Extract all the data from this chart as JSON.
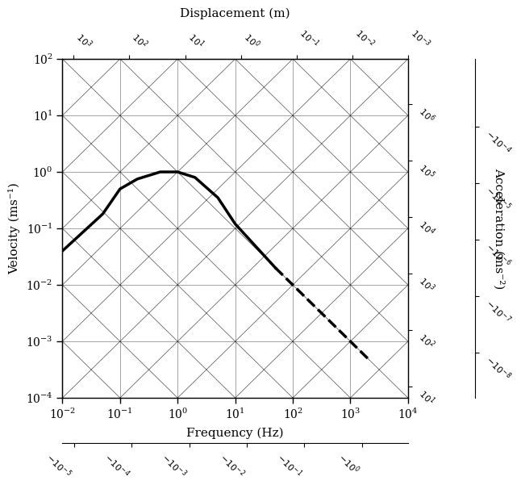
{
  "freq_min": 0.01,
  "freq_max": 10000,
  "vel_min": 0.0001,
  "vel_max": 100,
  "title_top": "Displacement (m)",
  "title_left": "Velocity (ms⁻¹)",
  "title_bottom": "Frequency (Hz)",
  "title_right": "Acceleration (ms⁻²)",
  "curve_points": [
    [
      0.01,
      0.04
    ],
    [
      0.1,
      0.5
    ],
    [
      0.5,
      1.0
    ],
    [
      1.0,
      1.0
    ],
    [
      2.0,
      0.9
    ],
    [
      10.0,
      0.12
    ],
    [
      100.0,
      0.012
    ],
    [
      200.0,
      0.006
    ],
    [
      500.0,
      0.002
    ],
    [
      1000.0,
      0.003
    ],
    [
      3000.0,
      0.001
    ]
  ],
  "bg_color": "#ffffff",
  "line_color": "#000000",
  "grid_color": "#000000"
}
